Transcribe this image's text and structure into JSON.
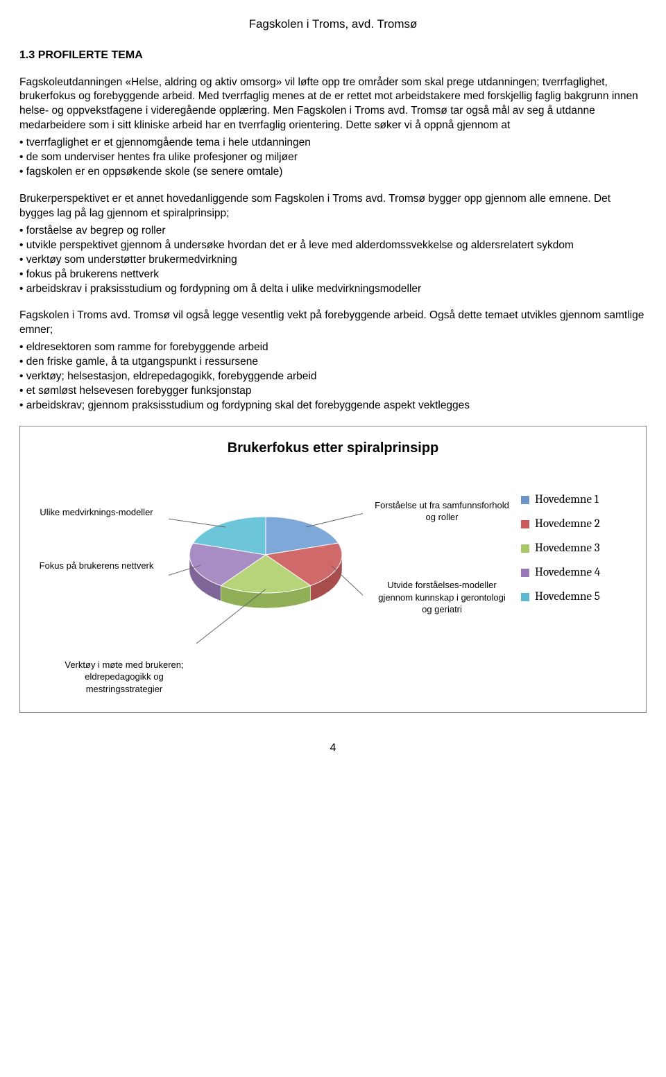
{
  "header": "Fagskolen i Troms, avd. Tromsø",
  "section_title": "1.3 PROFILERTE TEMA",
  "para1": "Fagskoleutdanningen «Helse, aldring og aktiv omsorg» vil løfte opp tre områder som skal prege utdanningen; tverrfaglighet, brukerfokus og forebyggende arbeid. Med tverrfaglig menes at de er rettet mot arbeidstakere med forskjellig faglig bakgrunn innen helse- og oppvekstfagene i videregående opplæring. Men Fagskolen i Troms avd. Tromsø tar også mål av seg å utdanne medarbeidere som i sitt kliniske arbeid har en tverrfaglig orientering. Dette søker vi å oppnå gjennom at",
  "bullets1": [
    "• tverrfaglighet er et gjennomgående tema i hele utdanningen",
    "• de som underviser hentes fra ulike profesjoner og miljøer",
    "• fagskolen er en oppsøkende skole (se senere omtale)"
  ],
  "para2": "Brukerperspektivet er et annet hovedanliggende som Fagskolen i Troms avd. Tromsø bygger opp gjennom alle emnene. Det bygges lag på lag gjennom et spiralprinsipp;",
  "bullets2": [
    "• forståelse av begrep og roller",
    "• utvikle perspektivet gjennom å undersøke hvordan det er å leve med alderdomssvekkelse og aldersrelatert sykdom",
    "• verktøy som understøtter brukermedvirkning",
    "• fokus på brukerens nettverk",
    "• arbeidskrav i praksisstudium og fordypning om å delta i ulike medvirkningsmodeller"
  ],
  "para3": "Fagskolen i Troms avd. Tromsø vil også legge vesentlig vekt på forebyggende arbeid. Også dette temaet utvikles gjennom samtlige emner;",
  "bullets3": [
    "• eldresektoren som ramme for forebyggende arbeid",
    "• den friske gamle, å ta utgangspunkt i ressursene",
    "• verktøy; helsestasjon, eldrepedagogikk, forebyggende arbeid",
    "• et sømløst helsevesen forebygger funksjonstap",
    "• arbeidskrav; gjennom praksisstudium og fordypning skal det forebyggende aspekt vektlegges"
  ],
  "chart": {
    "title": "Brukerfokus etter spiralprinsipp",
    "type": "pie-3d",
    "slices": [
      {
        "label": "Hovedemne 1",
        "value": 20,
        "color_top": "#7ea8d8",
        "color_side": "#5a80b0"
      },
      {
        "label": "Hovedemne 2",
        "value": 20,
        "color_top": "#d06a6a",
        "color_side": "#a84c4c"
      },
      {
        "label": "Hovedemne 3",
        "value": 20,
        "color_top": "#b7d47a",
        "color_side": "#8fae56"
      },
      {
        "label": "Hovedemne 4",
        "value": 20,
        "color_top": "#a88cc4",
        "color_side": "#7e6698"
      },
      {
        "label": "Hovedemne 5",
        "value": 20,
        "color_top": "#6cc5d8",
        "color_side": "#4a9fb2"
      }
    ],
    "callouts": {
      "left1": "Ulike medvirknings-modeller",
      "left2": "Fokus på brukerens nettverk",
      "right1": "Forståelse ut fra samfunnsforhold og roller",
      "right2": "Utvide forståelses-modeller gjennom kunnskap i gerontologi og geriatri",
      "bottom": "Verktøy i møte med brukeren; eldrepedagogikk og mestringsstrategier"
    },
    "legend_swatch_colors": [
      "#6a94c8",
      "#c85a5a",
      "#a8c868",
      "#9878b8",
      "#5cb8ce"
    ],
    "background_color": "#ffffff",
    "callout_line_color": "#666666",
    "tilt_ratio": 0.5
  },
  "page_number": "4"
}
